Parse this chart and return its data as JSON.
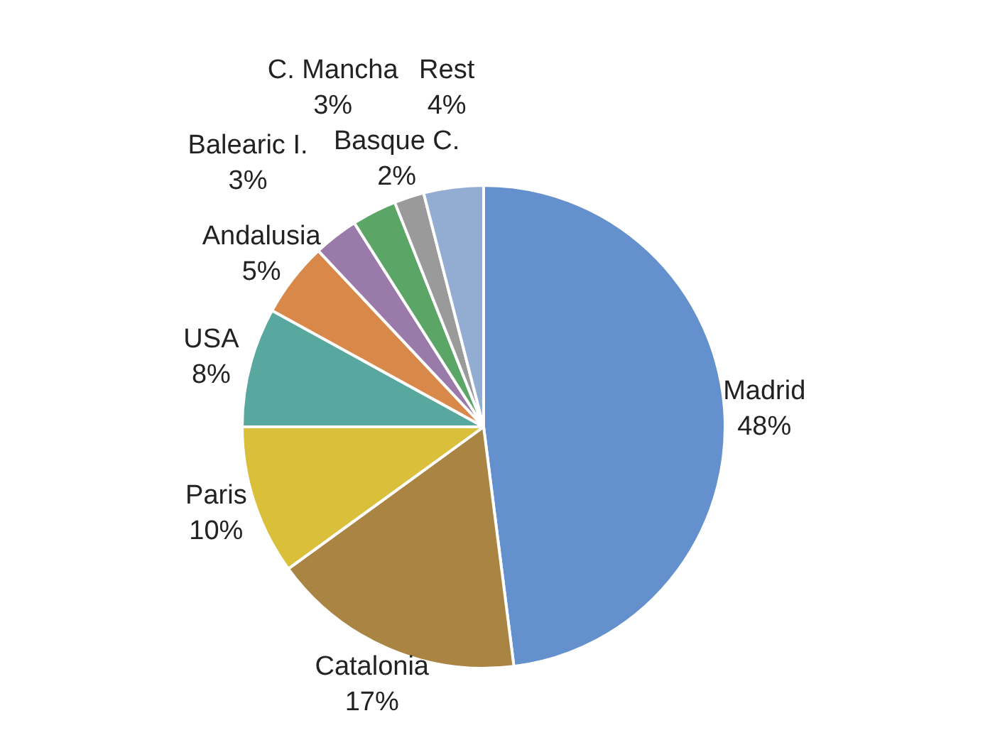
{
  "chart_data": {
    "type": "pie",
    "categories": [
      "Madrid",
      "Catalonia",
      "Paris",
      "USA",
      "Andalusia",
      "Balearic I.",
      "C. Mancha",
      "Basque C.",
      "Rest"
    ],
    "values": [
      48,
      17,
      10,
      8,
      5,
      3,
      3,
      2,
      4
    ],
    "value_labels": [
      "48%",
      "17%",
      "10%",
      "8%",
      "5%",
      "3%",
      "3%",
      "2%",
      "4%"
    ],
    "colors": [
      "#6490cd",
      "#a98443",
      "#d9bf3a",
      "#58a8a0",
      "#d8894a",
      "#9a7aa8",
      "#5ba566",
      "#9a9a9a",
      "#92acd2"
    ]
  }
}
